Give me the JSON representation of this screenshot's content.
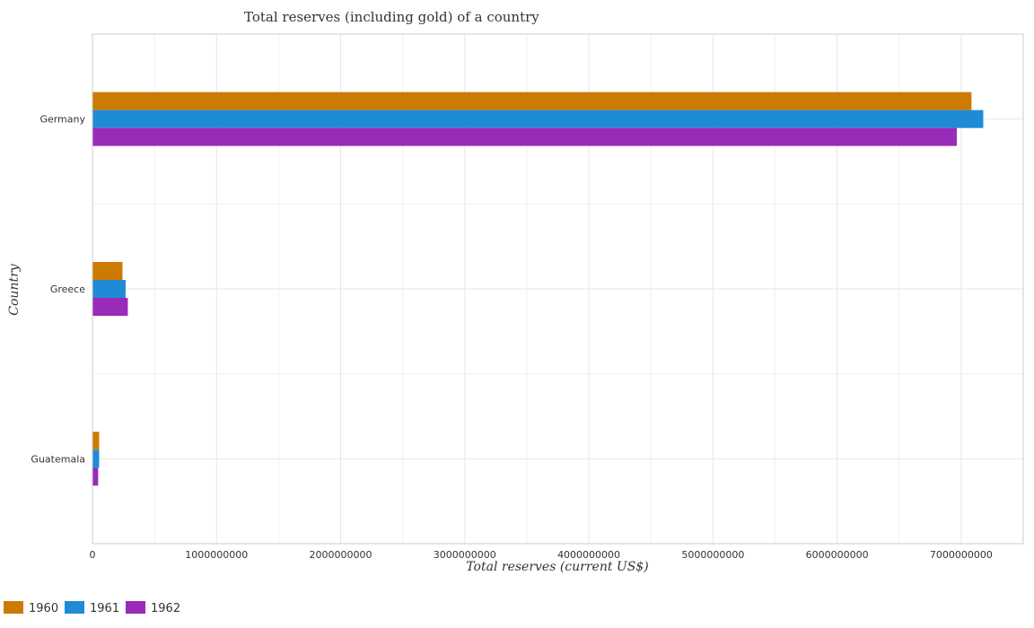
{
  "chart_data": {
    "type": "bar",
    "orientation": "horizontal",
    "title": "Total reserves (including gold) of a country",
    "xlabel": "Total reserves (current US$)",
    "ylabel": "Country",
    "categories": [
      "Germany",
      "Greece",
      "Guatemala"
    ],
    "series": [
      {
        "name": "1960",
        "color": "#cc7a00",
        "values": [
          7083000000,
          242000000,
          54000000
        ]
      },
      {
        "name": "1961",
        "color": "#1f8bd6",
        "values": [
          7178000000,
          267000000,
          54000000
        ]
      },
      {
        "name": "1962",
        "color": "#9a2ab8",
        "values": [
          6965000000,
          285000000,
          46000000
        ]
      }
    ],
    "xlim": [
      0,
      7500000000
    ],
    "xticks": [
      0,
      1000000000,
      2000000000,
      3000000000,
      4000000000,
      5000000000,
      6000000000,
      7000000000
    ],
    "xtick_labels": [
      "0",
      "1000000000",
      "2000000000",
      "3000000000",
      "4000000000",
      "5000000000",
      "6000000000",
      "7000000000"
    ],
    "grid": true,
    "legend_position": "bottom-left"
  }
}
